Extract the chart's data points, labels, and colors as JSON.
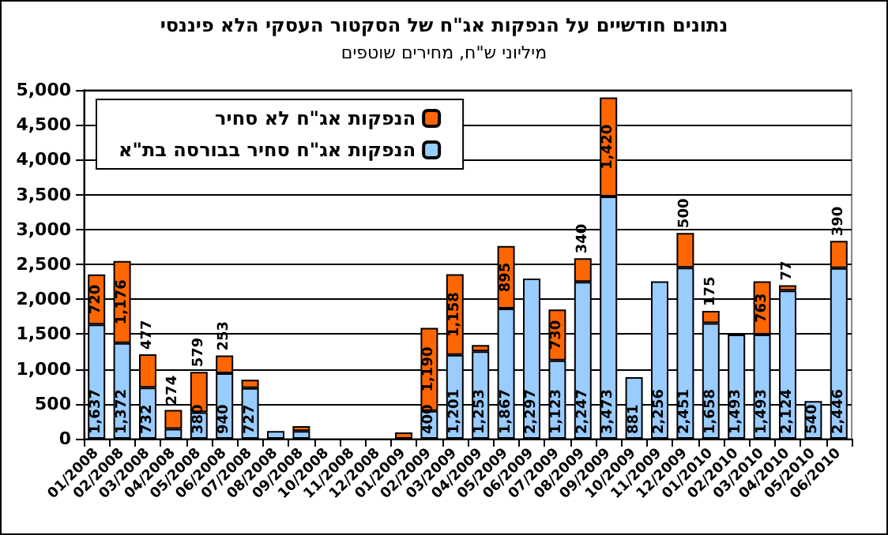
{
  "chart_data": {
    "type": "bar",
    "title": "נתונים חודשיים על הנפקות אג\"ח של הסקטור העסקי הלא פיננסי",
    "subtitle": "מיליוני ש\"ח, מחירים שוטפים",
    "categories": [
      "01/2008",
      "02/2008",
      "03/2008",
      "04/2008",
      "05/2008",
      "06/2008",
      "07/2008",
      "08/2008",
      "09/2008",
      "10/2008",
      "11/2008",
      "12/2008",
      "01/2009",
      "02/2009",
      "03/2009",
      "04/2009",
      "05/2009",
      "06/2009",
      "07/2009",
      "08/2009",
      "09/2009",
      "10/2009",
      "11/2009",
      "12/2009",
      "01/2010",
      "02/2010",
      "03/2010",
      "04/2010",
      "05/2010",
      "06/2010"
    ],
    "stacked": true,
    "series": [
      {
        "name": "הנפקות אג\"ח סחיר בבורסה בת\"א",
        "color": "#99ccff",
        "values": [
          1637,
          1372,
          732,
          140,
          380,
          940,
          727,
          110,
          110,
          0,
          0,
          0,
          0,
          400,
          1201,
          1253,
          1867,
          2297,
          1123,
          2247,
          3473,
          881,
          2256,
          2451,
          1658,
          1493,
          1493,
          2124,
          540,
          2446
        ],
        "value_labels": [
          "1,637",
          "1,372",
          "732",
          null,
          "380",
          "940",
          "727",
          null,
          null,
          null,
          null,
          null,
          null,
          "400",
          "1,201",
          "1,253",
          "1,867",
          "2,297",
          "1,123",
          "2,247",
          "3,473",
          "881",
          "2,256",
          "2,451",
          "1,658",
          "1,493",
          "1,493",
          "2,124",
          "540",
          "2,446"
        ]
      },
      {
        "name": "הנפקות אג\"ח לא סחיר",
        "color": "#ff6600",
        "values": [
          720,
          1176,
          477,
          274,
          579,
          253,
          120,
          0,
          70,
          0,
          0,
          0,
          90,
          1190,
          1158,
          90,
          895,
          0,
          730,
          340,
          1420,
          0,
          0,
          500,
          175,
          0,
          763,
          77,
          0,
          390
        ],
        "value_labels": [
          "720",
          "1,176",
          "477",
          "274",
          "579",
          "253",
          null,
          null,
          null,
          null,
          null,
          null,
          null,
          "1,190",
          "1,158",
          null,
          "895",
          null,
          "730",
          "340",
          "1,420",
          null,
          null,
          "500",
          "175",
          null,
          "763",
          "77",
          null,
          "390"
        ]
      }
    ],
    "ylim": [
      0,
      5000
    ],
    "yticks": [
      0,
      500,
      {
        "value": 1000,
        "label": "1,000"
      },
      {
        "value": 1500,
        "label": "1,500"
      },
      {
        "value": 2000,
        "label": "2,000"
      },
      {
        "value": 2500,
        "label": "2,500"
      },
      {
        "value": 3000,
        "label": "3,000"
      },
      {
        "value": 3500,
        "label": "3,500"
      },
      {
        "value": 4000,
        "label": "4,000"
      },
      {
        "value": 4500,
        "label": "4,500"
      },
      {
        "value": 5000,
        "label": "5,000"
      }
    ],
    "grid": "y",
    "legend": "top left"
  }
}
